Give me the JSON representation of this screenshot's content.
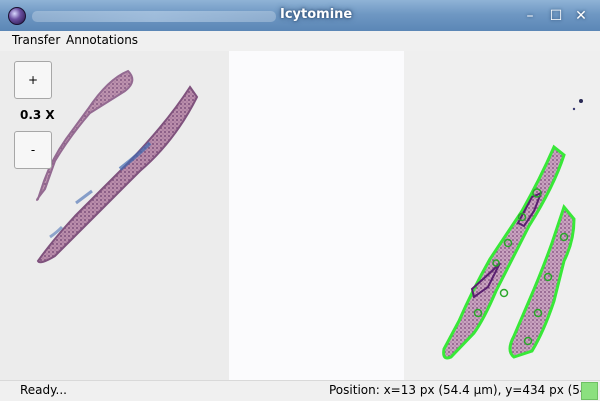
{
  "window": {
    "title": "Icytomine",
    "controls": {
      "minimize": "–",
      "maximize": "☐",
      "close": "✕"
    },
    "icons": [
      "app-icon",
      "minimize-icon",
      "maximize-icon",
      "close-icon"
    ]
  },
  "menu": {
    "items": [
      "Transfer",
      "Annotations"
    ]
  },
  "viewer": {
    "zoom_in_label": "+",
    "zoom_level": "0.3 X",
    "zoom_out_label": "-",
    "colors": {
      "tissue": "#8a5c88",
      "stain_blue": "#4169b0",
      "annotation_outline": "#38e838",
      "annotation_dark": "#5a2070"
    }
  },
  "status": {
    "text": "Ready...",
    "position": "Position: x=13 px (54.4 µm), y=434 px (549 µm)",
    "indicator_color": "#8be07f"
  }
}
